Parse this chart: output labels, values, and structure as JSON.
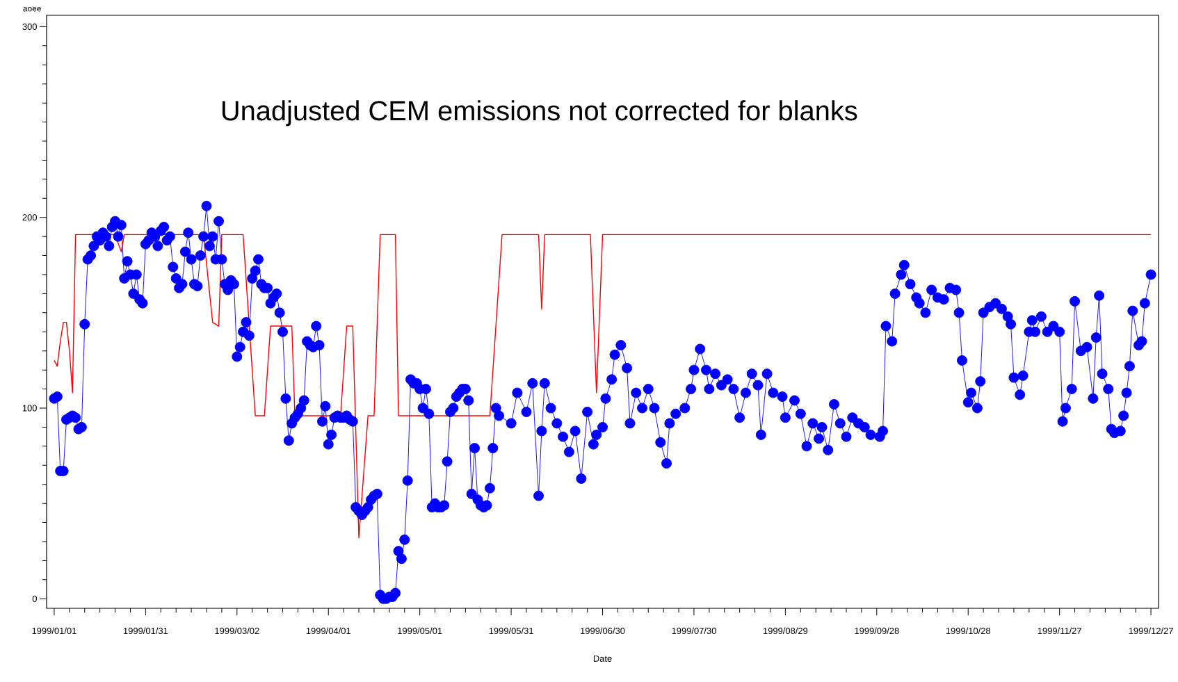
{
  "chart_data": {
    "type": "line",
    "xlabel": "Date",
    "ylabel": "aoee",
    "annotations": [
      "Unadjusted CEM emissions not corrected for blanks"
    ],
    "xlim": [
      "1998-12-29T12:00",
      "1999-12-29T12:00"
    ],
    "ylim": [
      -5,
      306
    ],
    "xticks": [
      {
        "value": "1999-01-01",
        "label": "1999/01/01"
      },
      {
        "value": "1999-01-31",
        "label": "1999/01/31"
      },
      {
        "value": "1999-03-02",
        "label": "1999/03/02"
      },
      {
        "value": "1999-04-01",
        "label": "1999/04/01"
      },
      {
        "value": "1999-05-01",
        "label": "1999/05/01"
      },
      {
        "value": "1999-05-31",
        "label": "1999/05/31"
      },
      {
        "value": "1999-06-30",
        "label": "1999/06/30"
      },
      {
        "value": "1999-07-30",
        "label": "1999/07/30"
      },
      {
        "value": "1999-08-29",
        "label": "1999/08/29"
      },
      {
        "value": "1999-09-28",
        "label": "1999/09/28"
      },
      {
        "value": "1999-10-28",
        "label": "1999/10/28"
      },
      {
        "value": "1999-11-27",
        "label": "1999/11/27"
      },
      {
        "value": "1999-12-27",
        "label": "1999/12/27"
      }
    ],
    "yticks": [
      0,
      100,
      200,
      300
    ],
    "series": [
      {
        "color": "#0000ff",
        "marker": "circle",
        "x": [
          "1999-01-01",
          "1999-01-02",
          "1999-01-03",
          "1999-01-04",
          "1999-01-05",
          "1999-01-06",
          "1999-01-07",
          "1999-01-08",
          "1999-01-09",
          "1999-01-10",
          "1999-01-11",
          "1999-01-12",
          "1999-01-13",
          "1999-01-14",
          "1999-01-15",
          "1999-01-16",
          "1999-01-17",
          "1999-01-18",
          "1999-01-19",
          "1999-01-20",
          "1999-01-21",
          "1999-01-22",
          "1999-01-23",
          "1999-01-24",
          "1999-01-25",
          "1999-01-26",
          "1999-01-27",
          "1999-01-28",
          "1999-01-29",
          "1999-01-30",
          "1999-01-31",
          "1999-02-01",
          "1999-02-02",
          "1999-02-03",
          "1999-02-04",
          "1999-02-05",
          "1999-02-06",
          "1999-02-07",
          "1999-02-08",
          "1999-02-09",
          "1999-02-10",
          "1999-02-11",
          "1999-02-12",
          "1999-02-13",
          "1999-02-14",
          "1999-02-15",
          "1999-02-16",
          "1999-02-17",
          "1999-02-18",
          "1999-02-19",
          "1999-02-20",
          "1999-02-21",
          "1999-02-22",
          "1999-02-23",
          "1999-02-24",
          "1999-02-25",
          "1999-02-26",
          "1999-02-27",
          "1999-02-28",
          "1999-03-01",
          "1999-03-02",
          "1999-03-03",
          "1999-03-04",
          "1999-03-05",
          "1999-03-06",
          "1999-03-07",
          "1999-03-08",
          "1999-03-09",
          "1999-03-10",
          "1999-03-11",
          "1999-03-12",
          "1999-03-13",
          "1999-03-14",
          "1999-03-15",
          "1999-03-16",
          "1999-03-17",
          "1999-03-18",
          "1999-03-19",
          "1999-03-20",
          "1999-03-21",
          "1999-03-22",
          "1999-03-23",
          "1999-03-24",
          "1999-03-25",
          "1999-03-26",
          "1999-03-27",
          "1999-03-28",
          "1999-03-29",
          "1999-03-30",
          "1999-03-31",
          "1999-04-01",
          "1999-04-02",
          "1999-04-03",
          "1999-04-04",
          "1999-04-05",
          "1999-04-06",
          "1999-04-07",
          "1999-04-08",
          "1999-04-09",
          "1999-04-10",
          "1999-04-11",
          "1999-04-12",
          "1999-04-13",
          "1999-04-14",
          "1999-04-15",
          "1999-04-16",
          "1999-04-17",
          "1999-04-18",
          "1999-04-19",
          "1999-04-20",
          "1999-04-21",
          "1999-04-22",
          "1999-04-23",
          "1999-04-24",
          "1999-04-25",
          "1999-04-26",
          "1999-04-27",
          "1999-04-28",
          "1999-04-29",
          "1999-04-30",
          "1999-05-01",
          "1999-05-02",
          "1999-05-03",
          "1999-05-04",
          "1999-05-05",
          "1999-05-06",
          "1999-05-07",
          "1999-05-08",
          "1999-05-09",
          "1999-05-10",
          "1999-05-11",
          "1999-05-12",
          "1999-05-13",
          "1999-05-14",
          "1999-05-15",
          "1999-05-16",
          "1999-05-17",
          "1999-05-18",
          "1999-05-19",
          "1999-05-20",
          "1999-05-21",
          "1999-05-22",
          "1999-05-23",
          "1999-05-24",
          "1999-05-25",
          "1999-05-26",
          "1999-05-27",
          "1999-05-31",
          "1999-06-02",
          "1999-06-05",
          "1999-06-07",
          "1999-06-09",
          "1999-06-10",
          "1999-06-11",
          "1999-06-13",
          "1999-06-15",
          "1999-06-17",
          "1999-06-19",
          "1999-06-21",
          "1999-06-23",
          "1999-06-25",
          "1999-06-27",
          "1999-06-28",
          "1999-06-30",
          "1999-07-01",
          "1999-07-03",
          "1999-07-04",
          "1999-07-06",
          "1999-07-08",
          "1999-07-09",
          "1999-07-11",
          "1999-07-13",
          "1999-07-15",
          "1999-07-17",
          "1999-07-19",
          "1999-07-21",
          "1999-07-22",
          "1999-07-24",
          "1999-07-27",
          "1999-07-29",
          "1999-07-30",
          "1999-08-01",
          "1999-08-03",
          "1999-08-04",
          "1999-08-06",
          "1999-08-08",
          "1999-08-10",
          "1999-08-12",
          "1999-08-14",
          "1999-08-16",
          "1999-08-18",
          "1999-08-20",
          "1999-08-21",
          "1999-08-23",
          "1999-08-25",
          "1999-08-28",
          "1999-08-29",
          "1999-09-01",
          "1999-09-03",
          "1999-09-05",
          "1999-09-07",
          "1999-09-09",
          "1999-09-10",
          "1999-09-12",
          "1999-09-14",
          "1999-09-16",
          "1999-09-18",
          "1999-09-20",
          "1999-09-22",
          "1999-09-24",
          "1999-09-26",
          "1999-09-29",
          "1999-09-30",
          "1999-10-01",
          "1999-10-03",
          "1999-10-04",
          "1999-10-06",
          "1999-10-07",
          "1999-10-09",
          "1999-10-11",
          "1999-10-12",
          "1999-10-14",
          "1999-10-16",
          "1999-10-18",
          "1999-10-20",
          "1999-10-22",
          "1999-10-24",
          "1999-10-25",
          "1999-10-26",
          "1999-10-28",
          "1999-10-29",
          "1999-10-31",
          "1999-11-01",
          "1999-11-02",
          "1999-11-04",
          "1999-11-06",
          "1999-11-08",
          "1999-11-10",
          "1999-11-11",
          "1999-11-12",
          "1999-11-14",
          "1999-11-15",
          "1999-11-17",
          "1999-11-18",
          "1999-11-19",
          "1999-11-21",
          "1999-11-23",
          "1999-11-25",
          "1999-11-27",
          "1999-11-28",
          "1999-11-29",
          "1999-12-01",
          "1999-12-02",
          "1999-12-04",
          "1999-12-06",
          "1999-12-08",
          "1999-12-09",
          "1999-12-10",
          "1999-12-11",
          "1999-12-13",
          "1999-12-14",
          "1999-12-15",
          "1999-12-17",
          "1999-12-18",
          "1999-12-19",
          "1999-12-20",
          "1999-12-21",
          "1999-12-23",
          "1999-12-24",
          "1999-12-25",
          "1999-12-27"
        ],
        "values": [
          105,
          106,
          67,
          67,
          94,
          95,
          96,
          95,
          89,
          90,
          144,
          178,
          180,
          185,
          190,
          188,
          192,
          190,
          185,
          195,
          198,
          190,
          196,
          168,
          177,
          170,
          160,
          170,
          157,
          155,
          186,
          188,
          192,
          190,
          185,
          193,
          195,
          188,
          190,
          174,
          168,
          163,
          165,
          182,
          192,
          178,
          165,
          164,
          180,
          190,
          206,
          185,
          190,
          178,
          198,
          178,
          165,
          162,
          167,
          165,
          127,
          132,
          140,
          145,
          138,
          168,
          172,
          178,
          165,
          163,
          163,
          155,
          158,
          160,
          150,
          140,
          105,
          83,
          92,
          95,
          97,
          100,
          104,
          135,
          133,
          132,
          143,
          133,
          93,
          101,
          81,
          86,
          95,
          96,
          95,
          95,
          96,
          94,
          93,
          48,
          46,
          44,
          46,
          48,
          52,
          54,
          55,
          2,
          0,
          0,
          1,
          1,
          3,
          25,
          21,
          31,
          62,
          115,
          113,
          113,
          110,
          100,
          110,
          97,
          48,
          50,
          48,
          48,
          49,
          72,
          98,
          100,
          106,
          108,
          110,
          110,
          104,
          55,
          79,
          52,
          49,
          48,
          49,
          58,
          79,
          100,
          96,
          92,
          108,
          98,
          113,
          54,
          88,
          113,
          100,
          92,
          85,
          77,
          88,
          63,
          98,
          81,
          86,
          90,
          105,
          115,
          128,
          133,
          121,
          92,
          108,
          100,
          110,
          100,
          82,
          71,
          92,
          97,
          100,
          110,
          120,
          131,
          120,
          110,
          118,
          112,
          115,
          110,
          95,
          108,
          118,
          112,
          86,
          118,
          108,
          106,
          95,
          104,
          97,
          80,
          92,
          84,
          90,
          78,
          102,
          92,
          85,
          95,
          92,
          90,
          86,
          85,
          88,
          143,
          135,
          160,
          170,
          175,
          165,
          158,
          155,
          150,
          162,
          158,
          157,
          163,
          162,
          150,
          125,
          103,
          108,
          100,
          114,
          150,
          153,
          155,
          152,
          148,
          144,
          116,
          107,
          117,
          140,
          146,
          140,
          148,
          140,
          143,
          140,
          93,
          100,
          110,
          156,
          130,
          132,
          105,
          137,
          159,
          118,
          110,
          89,
          87,
          88,
          96,
          108,
          122,
          151,
          133,
          135,
          155,
          170
        ]
      },
      {
        "color": "#ff0000",
        "marker": "none",
        "x": [
          "1999-01-01",
          "1999-01-02",
          "1999-01-03",
          "1999-01-04",
          "1999-01-05",
          "1999-01-06",
          "1999-01-07",
          "1999-01-08",
          "1999-01-21",
          "1999-01-23",
          "1999-01-24",
          "1999-02-19",
          "1999-02-22",
          "1999-02-24",
          "1999-02-25",
          "1999-03-04",
          "1999-03-08",
          "1999-03-11",
          "1999-03-13",
          "1999-03-20",
          "1999-03-21",
          "1999-04-05",
          "1999-04-07",
          "1999-04-09",
          "1999-04-11",
          "1999-04-14",
          "1999-04-16",
          "1999-04-18",
          "1999-04-23",
          "1999-04-24",
          "1999-05-24",
          "1999-05-28",
          "1999-06-09",
          "1999-06-10",
          "1999-06-11",
          "1999-06-26",
          "1999-06-28",
          "1999-06-30",
          "1999-12-27"
        ],
        "values": [
          125,
          122,
          135,
          145,
          145,
          130,
          108,
          191,
          191,
          182,
          191,
          191,
          145,
          143,
          191,
          191,
          96,
          96,
          143,
          143,
          96,
          96,
          143,
          143,
          32,
          96,
          96,
          191,
          191,
          96,
          96,
          191,
          191,
          152,
          191,
          191,
          108,
          191,
          191
        ]
      }
    ]
  }
}
